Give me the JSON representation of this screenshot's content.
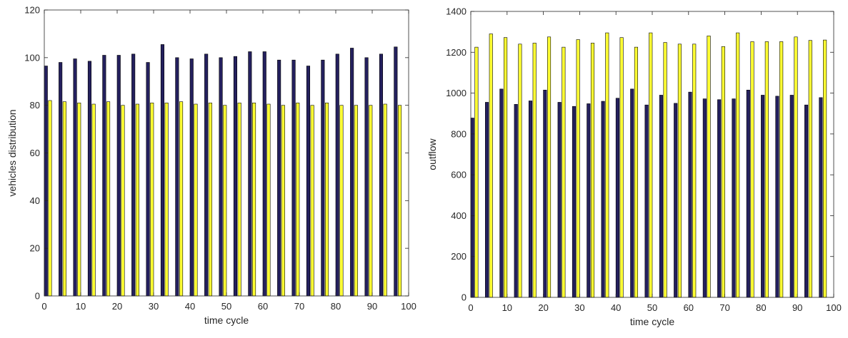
{
  "chart_data": [
    {
      "type": "bar",
      "xlabel": "time cycle",
      "ylabel": "vehicles distribution",
      "xlim": [
        0,
        100
      ],
      "ylim": [
        0,
        120
      ],
      "xticks": [
        0,
        10,
        20,
        30,
        40,
        50,
        60,
        70,
        80,
        90,
        100
      ],
      "yticks": [
        0,
        20,
        40,
        60,
        80,
        100,
        120
      ],
      "x": [
        1,
        5,
        9,
        13,
        17,
        21,
        25,
        29,
        33,
        37,
        41,
        45,
        49,
        53,
        57,
        61,
        65,
        69,
        73,
        77,
        81,
        85,
        89,
        93,
        97
      ],
      "series": [
        {
          "color": "#24205e",
          "values": [
            96.5,
            98,
            99.5,
            98.5,
            101,
            101,
            101.5,
            98,
            105.5,
            100,
            99.5,
            101.5,
            100,
            100.5,
            102.5,
            102.5,
            99,
            99,
            96.5,
            99,
            101.5,
            104,
            100,
            101.5,
            104.5
          ]
        },
        {
          "color": "#ffff33",
          "values": [
            82,
            81.5,
            81,
            80.5,
            81.5,
            80,
            80.5,
            81,
            81,
            81.5,
            80.5,
            81,
            80,
            81,
            81,
            80.5,
            80,
            81,
            80,
            81,
            80,
            80,
            80,
            80.5,
            80
          ]
        }
      ]
    },
    {
      "type": "bar",
      "xlabel": "time cycle",
      "ylabel": "outflow",
      "xlim": [
        0,
        100
      ],
      "ylim": [
        0,
        1400
      ],
      "xticks": [
        0,
        10,
        20,
        30,
        40,
        50,
        60,
        70,
        80,
        90,
        100
      ],
      "yticks": [
        0,
        200,
        400,
        600,
        800,
        1000,
        1200,
        1400
      ],
      "x": [
        1,
        5,
        9,
        13,
        17,
        21,
        25,
        29,
        33,
        37,
        41,
        45,
        49,
        53,
        57,
        61,
        65,
        69,
        73,
        77,
        81,
        85,
        89,
        93,
        97
      ],
      "series": [
        {
          "color": "#24205e",
          "values": [
            878,
            955,
            1020,
            945,
            962,
            1015,
            955,
            935,
            948,
            960,
            975,
            1020,
            942,
            990,
            950,
            1005,
            972,
            968,
            972,
            1015,
            990,
            985,
            990,
            942,
            978
          ]
        },
        {
          "color": "#ffff33",
          "values": [
            1225,
            1290,
            1272,
            1240,
            1245,
            1275,
            1225,
            1262,
            1245,
            1295,
            1272,
            1225,
            1295,
            1248,
            1240,
            1240,
            1280,
            1228,
            1295,
            1252,
            1252,
            1252,
            1275,
            1258,
            1260
          ]
        }
      ]
    }
  ]
}
